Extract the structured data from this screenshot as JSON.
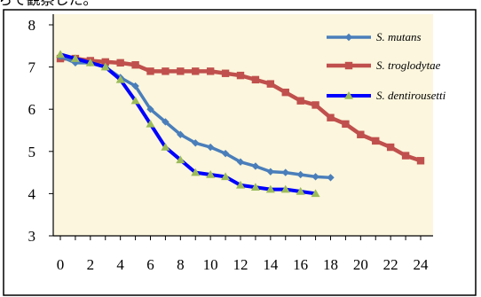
{
  "header_fragment": "らて観察した。",
  "chart_data": {
    "type": "line",
    "title": "",
    "xlabel": "",
    "ylabel": "",
    "xlim": [
      0,
      24
    ],
    "ylim": [
      3,
      8
    ],
    "x_ticks": [
      0,
      2,
      4,
      6,
      8,
      10,
      12,
      14,
      16,
      18,
      20,
      22,
      24
    ],
    "y_ticks": [
      3,
      4,
      5,
      6,
      7,
      8
    ],
    "grid": false,
    "legend_position": "top-right",
    "plot_background": "#fbf6dd",
    "series": [
      {
        "name": "S. mutans",
        "color": "#4a7ebb",
        "marker": "diamond",
        "x": [
          0,
          1,
          2,
          3,
          4,
          5,
          6,
          7,
          8,
          9,
          10,
          11,
          12,
          13,
          14,
          15,
          16,
          17,
          18
        ],
        "y": [
          7.25,
          7.1,
          7.1,
          7.0,
          6.75,
          6.55,
          6.0,
          5.7,
          5.4,
          5.2,
          5.1,
          4.95,
          4.75,
          4.65,
          4.52,
          4.5,
          4.45,
          4.4,
          4.38
        ]
      },
      {
        "name": "S. troglodytae",
        "color": "#c0504d",
        "marker": "square",
        "x": [
          0,
          1,
          2,
          3,
          4,
          5,
          6,
          7,
          8,
          9,
          10,
          11,
          12,
          13,
          14,
          15,
          16,
          17,
          18,
          19,
          20,
          21,
          22,
          23,
          24
        ],
        "y": [
          7.2,
          7.2,
          7.15,
          7.12,
          7.1,
          7.05,
          6.9,
          6.9,
          6.9,
          6.9,
          6.9,
          6.85,
          6.8,
          6.7,
          6.6,
          6.4,
          6.2,
          6.1,
          5.8,
          5.65,
          5.4,
          5.25,
          5.1,
          4.9,
          4.78
        ]
      },
      {
        "name": "S. dentirousetti",
        "color": "#0000ff",
        "marker": "triangle",
        "marker_color": "#9bbb59",
        "x": [
          0,
          1,
          2,
          3,
          4,
          5,
          6,
          7,
          8,
          9,
          10,
          11,
          12,
          13,
          14,
          15,
          16,
          17
        ],
        "y": [
          7.3,
          7.2,
          7.1,
          7.0,
          6.7,
          6.2,
          5.65,
          5.1,
          4.8,
          4.5,
          4.45,
          4.4,
          4.2,
          4.15,
          4.1,
          4.1,
          4.05,
          4.0
        ]
      }
    ]
  }
}
